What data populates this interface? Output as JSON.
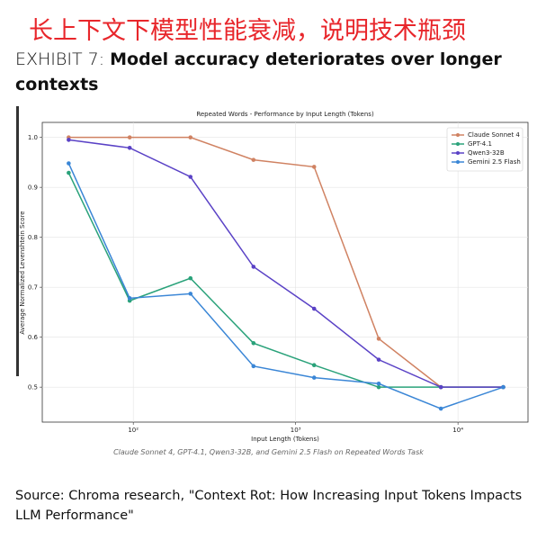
{
  "heading": "长上下文下模型性能衰减，说明技术瓶颈",
  "exhibit_label": "EXHIBIT 7:",
  "exhibit_title": "Model accuracy deteriorates over longer contexts",
  "caption": "Claude Sonnet 4, GPT-4.1, Qwen3-32B, and Gemini 2.5 Flash on Repeated Words Task",
  "source": "Source: Chroma research, \"Context Rot: How Increasing Input Tokens Impacts LLM Performance\"",
  "chart_data": {
    "type": "line",
    "title": "Repeated Words - Performance by Input Length (Tokens)",
    "x_label": "Input Length (Tokens)",
    "y_label": "Average Normalized Levenshtein Score",
    "x": [
      40,
      95,
      225,
      550,
      1300,
      3250,
      7850,
      19000
    ],
    "series": [
      {
        "name": "Claude Sonnet 4",
        "color": "#d08262",
        "values": [
          1.0,
          1.0,
          1.0,
          0.955,
          0.941,
          0.597,
          0.5,
          0.5
        ]
      },
      {
        "name": "GPT-4.1",
        "color": "#2aa27a",
        "values": [
          0.929,
          0.673,
          0.718,
          0.588,
          0.544,
          0.5,
          0.5,
          0.5
        ]
      },
      {
        "name": "Qwen3-32B",
        "color": "#5a42c6",
        "values": [
          0.995,
          0.979,
          0.921,
          0.741,
          0.657,
          0.555,
          0.5,
          0.5
        ]
      },
      {
        "name": "Gemini 2.5 Flash",
        "color": "#3a86d6",
        "values": [
          0.948,
          0.678,
          0.687,
          0.542,
          0.519,
          0.507,
          0.457,
          0.5
        ]
      }
    ],
    "xlim": [
      27.5,
      27000
    ],
    "xlog": true,
    "xticks": [
      {
        "value": 100,
        "label": "10²"
      },
      {
        "value": 1000,
        "label": "10³"
      },
      {
        "value": 10000,
        "label": "10⁴"
      }
    ],
    "ylim": [
      0.43,
      1.03
    ],
    "yticks": [
      0.5,
      0.6,
      0.7,
      0.8,
      0.9,
      {
        "value": 1,
        "label": "1.0"
      }
    ],
    "grid": true,
    "legend": "upper right"
  }
}
